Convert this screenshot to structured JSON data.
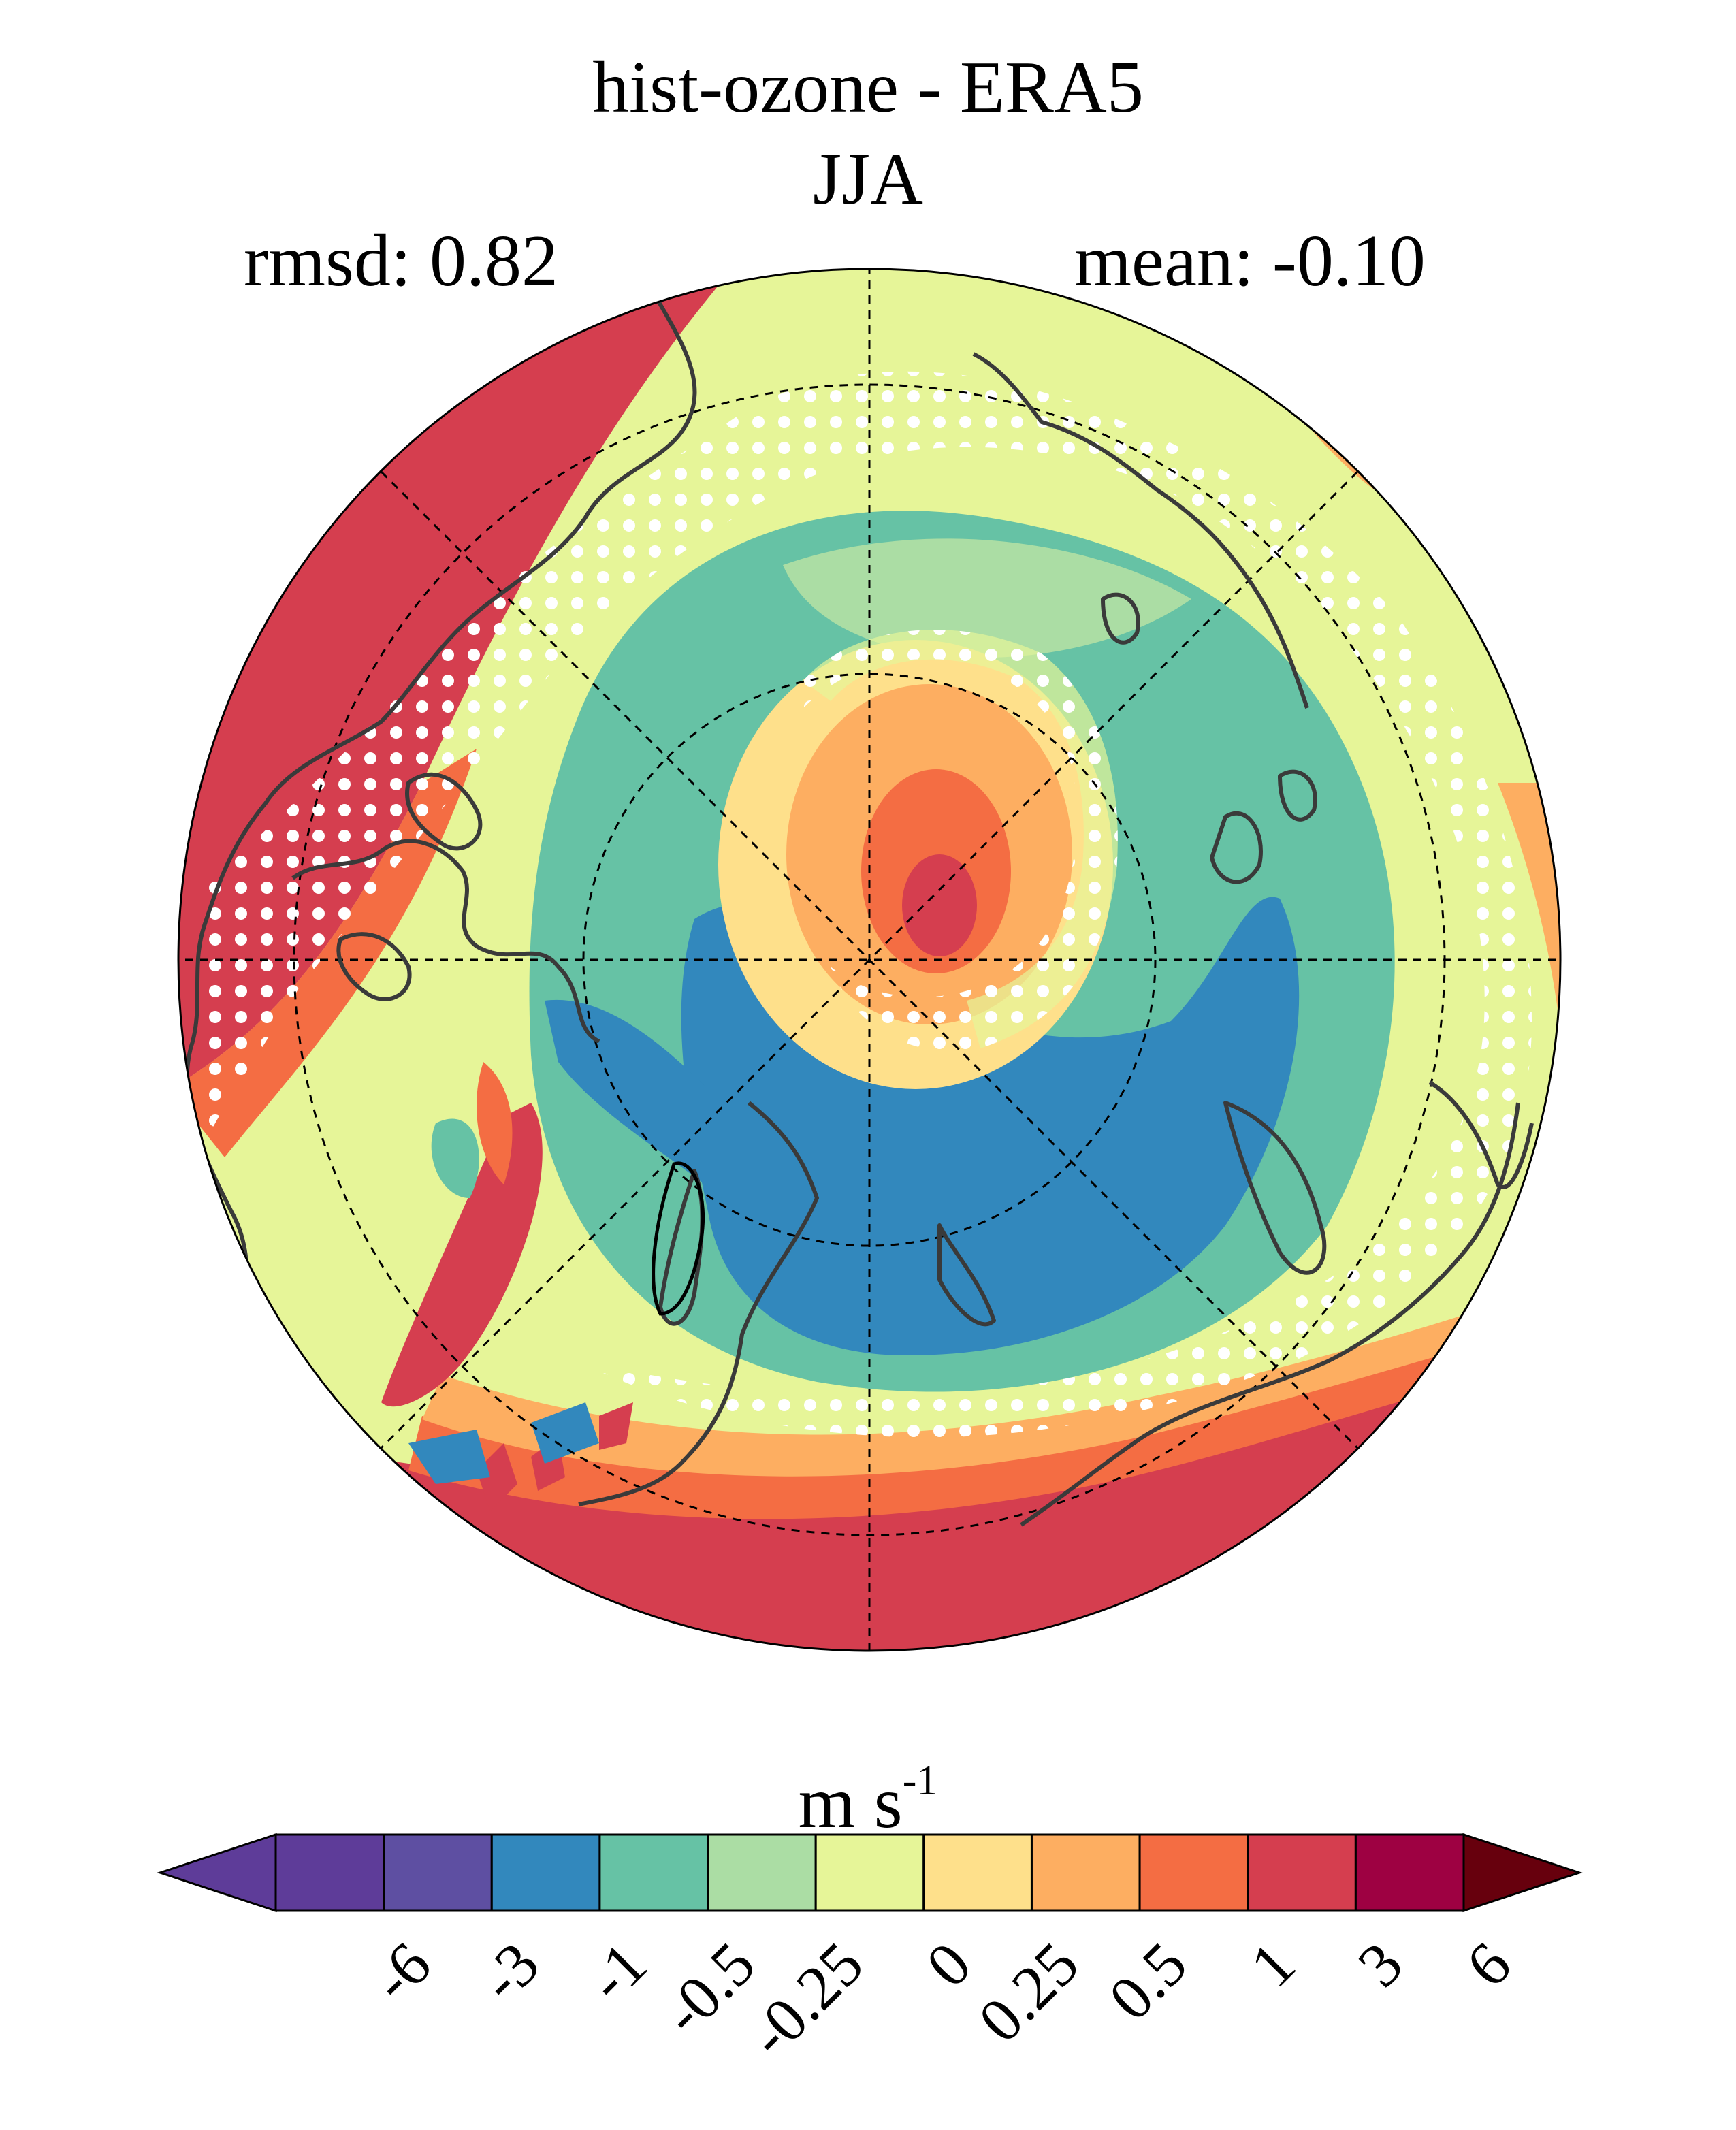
{
  "title": "hist-ozone - ERA5",
  "season": "JJA",
  "stats": {
    "rmsd_label": "rmsd: 0.82",
    "mean_label": "mean: -0.10"
  },
  "units": {
    "base": "m s",
    "exponent": "-1"
  },
  "colorbar": {
    "levels": [
      "-6",
      "-3",
      "-1",
      "-0.5",
      "-0.25",
      "0",
      "0.25",
      "0.5",
      "1",
      "3",
      "6"
    ],
    "colors": [
      "#5e3c99",
      "#5e4fa2",
      "#3288bd",
      "#66c2a5",
      "#abdda4",
      "#e6f598",
      "#fee08b",
      "#fdae61",
      "#f46d43",
      "#d53e4f",
      "#9e0142"
    ],
    "under_color": "#5e3c99",
    "over_color": "#67000d"
  },
  "map": {
    "projection": "north polar stereographic",
    "stippling": "white dots mark significant differences",
    "gridlines": "dashed"
  }
}
